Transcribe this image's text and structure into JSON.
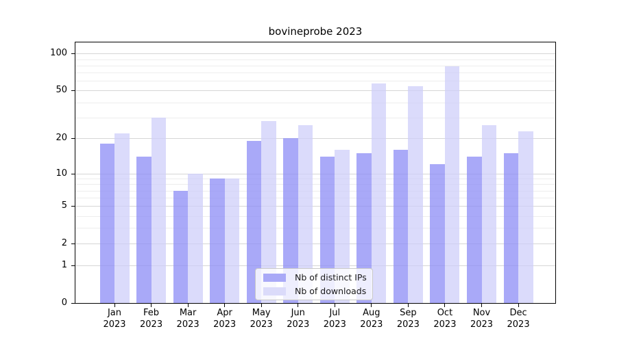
{
  "chart_data": {
    "type": "bar",
    "title": "bovineprobe 2023",
    "year": "2023",
    "months": [
      "Jan",
      "Feb",
      "Mar",
      "Apr",
      "May",
      "Jun",
      "Jul",
      "Aug",
      "Sep",
      "Oct",
      "Nov",
      "Dec"
    ],
    "categories": [
      "Jan 2023",
      "Feb 2023",
      "Mar 2023",
      "Apr 2023",
      "May 2023",
      "Jun 2023",
      "Jul 2023",
      "Aug 2023",
      "Sep 2023",
      "Oct 2023",
      "Nov 2023",
      "Dec 2023"
    ],
    "series": [
      {
        "name": "Nb of distinct IPs",
        "color": "#a9a9f7",
        "fill": "rgba(140,140,245,0.75)",
        "values": [
          18,
          14,
          7,
          9,
          19,
          20,
          14,
          15,
          16,
          12,
          14,
          15
        ]
      },
      {
        "name": "Nb of downloads",
        "color": "#dbdbfa",
        "fill": "rgba(205,205,250,0.72)",
        "values": [
          22,
          30,
          10,
          9,
          28,
          26,
          16,
          57,
          54,
          79,
          26,
          23
        ]
      }
    ],
    "yscale": "log1p",
    "ylim": [
      0,
      124
    ],
    "y_major_ticks": [
      0,
      1,
      2,
      5,
      10,
      20,
      50,
      100
    ],
    "y_minor_ticks": [
      3,
      4,
      6,
      7,
      8,
      9,
      30,
      40,
      60,
      70,
      80,
      90
    ],
    "grid": "on",
    "legend_position": "lower-center-inside"
  }
}
